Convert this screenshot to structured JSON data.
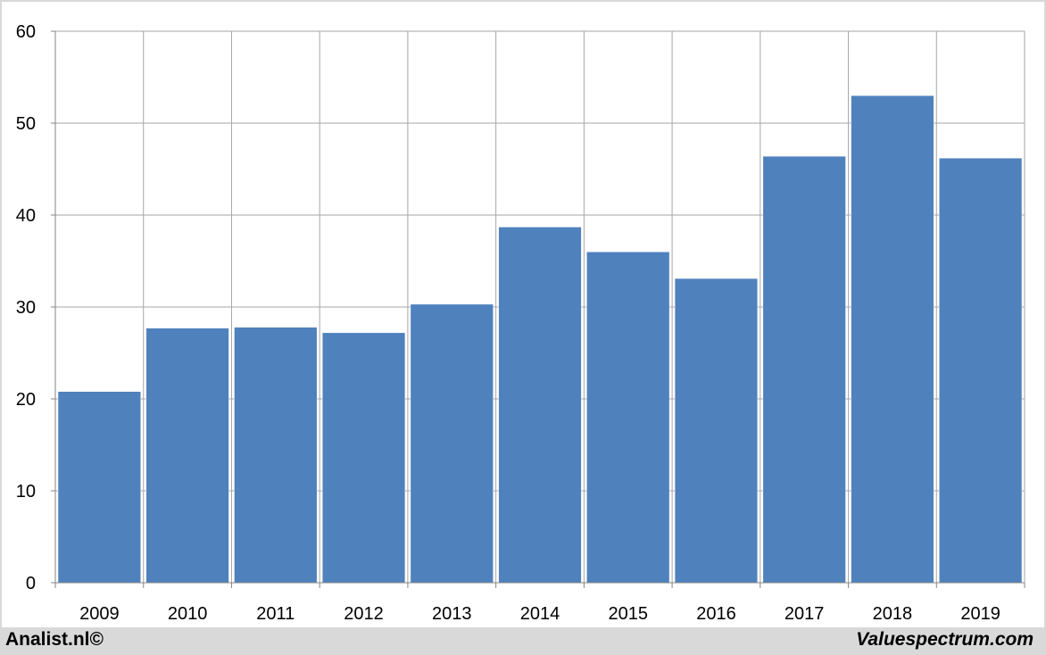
{
  "chart_data": {
    "type": "bar",
    "categories": [
      "2009",
      "2010",
      "2011",
      "2012",
      "2013",
      "2014",
      "2015",
      "2016",
      "2017",
      "2018",
      "2019"
    ],
    "values": [
      20.8,
      27.7,
      27.8,
      27.2,
      30.3,
      38.7,
      36.0,
      33.1,
      46.4,
      53.0,
      46.2
    ],
    "ylim": [
      0,
      60
    ],
    "yticks": [
      "0",
      "10",
      "20",
      "30",
      "40",
      "50",
      "60"
    ],
    "title": "",
    "xlabel": "",
    "ylabel": "",
    "grid": true,
    "bar_color": "#4f81bd",
    "grid_color": "#a6a6a6"
  },
  "footer": {
    "left_text": "Analist.nl©",
    "right_text": "Valuespectrum.com",
    "background": "#d9d9d9"
  }
}
